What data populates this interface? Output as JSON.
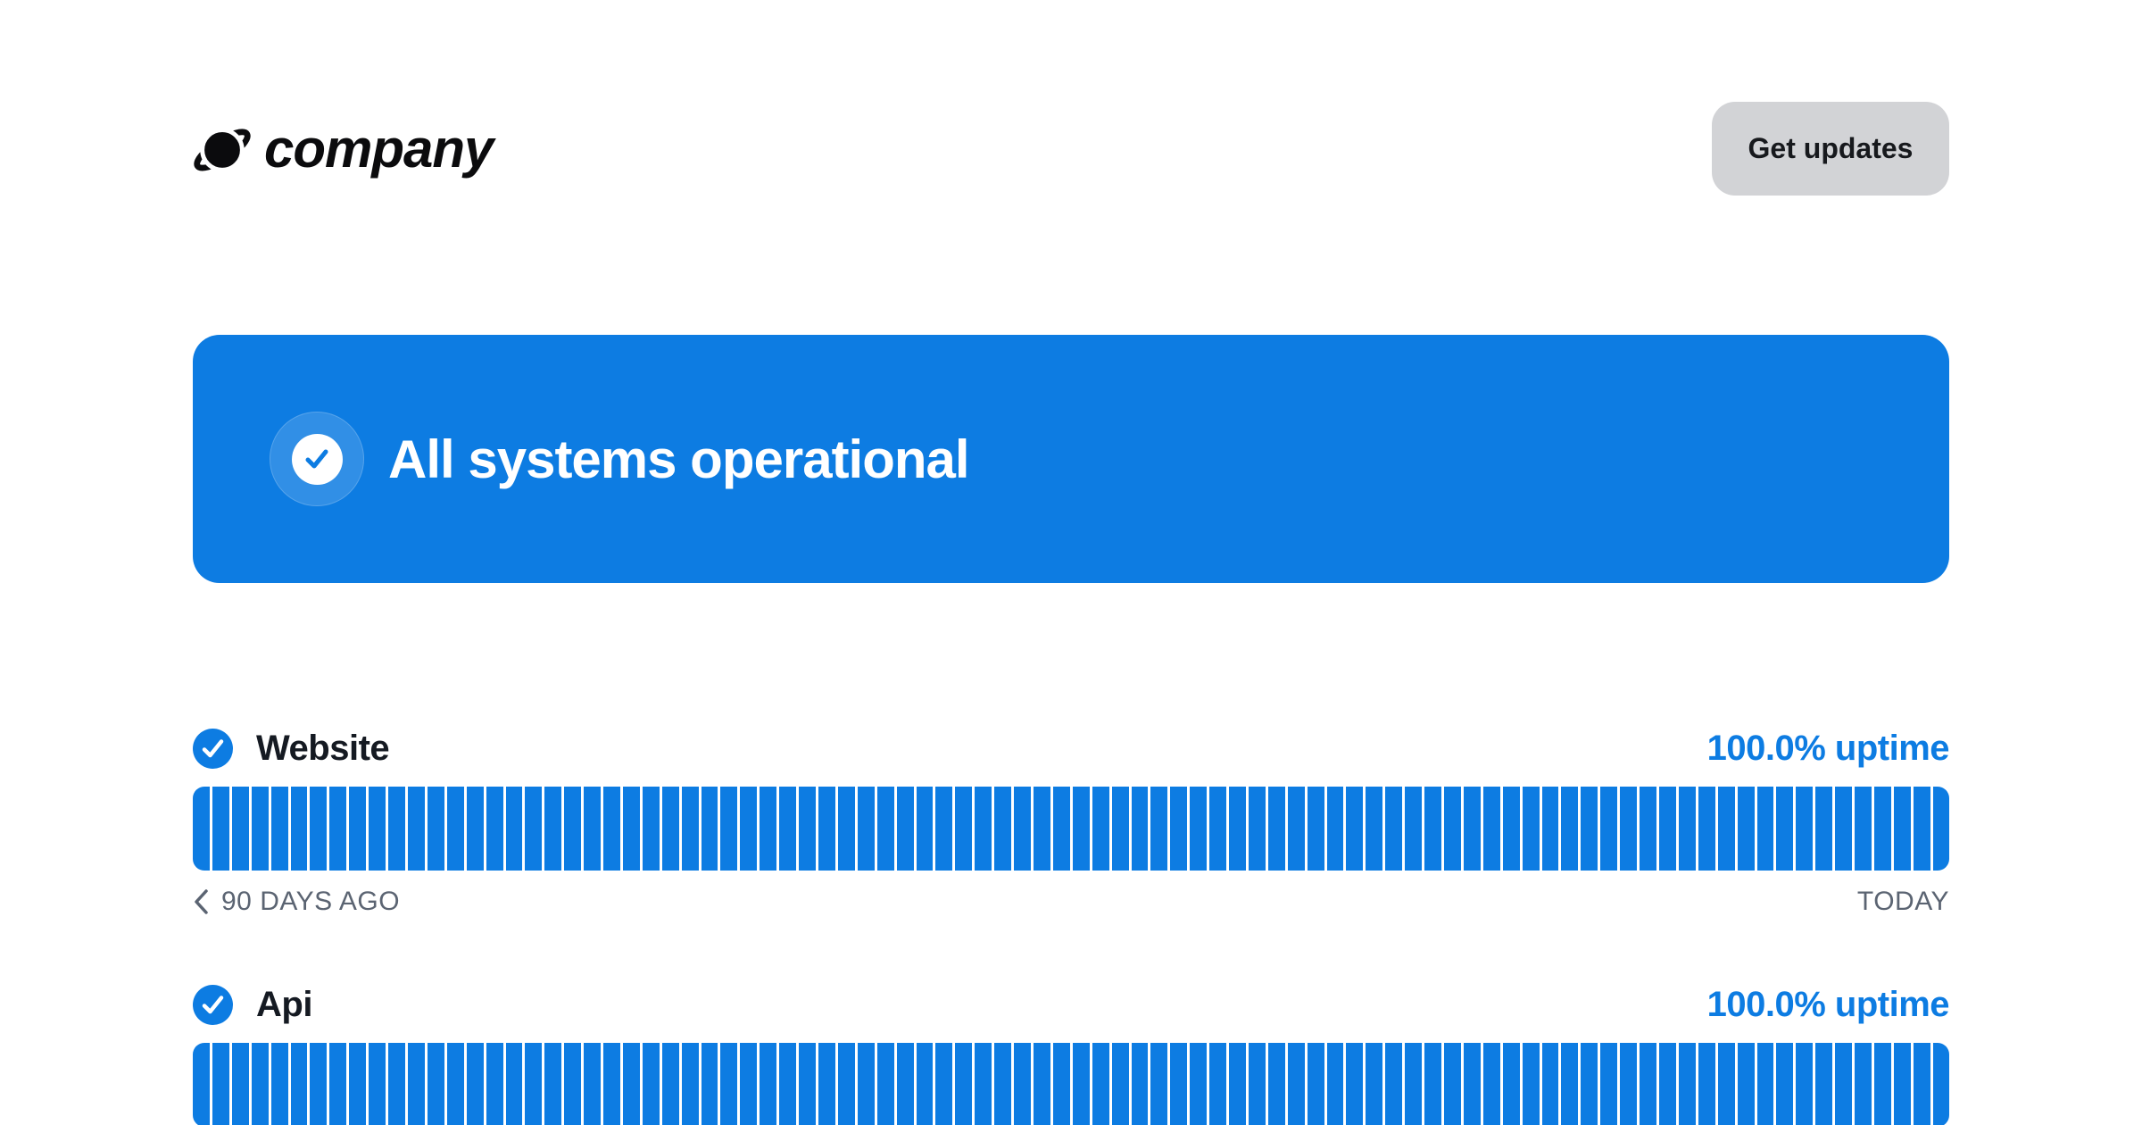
{
  "header": {
    "logo_text": "company",
    "get_updates_label": "Get updates"
  },
  "banner": {
    "message": "All systems operational"
  },
  "services": [
    {
      "name": "Website",
      "uptime_label": "100.0% uptime",
      "uptime_percent": 100.0,
      "days": 90,
      "status": "operational",
      "legend": {
        "left": "90 DAYS AGO",
        "right": "TODAY"
      }
    },
    {
      "name": "Api",
      "uptime_label": "100.0% uptime",
      "uptime_percent": 100.0,
      "days": 90,
      "status": "operational"
    }
  ],
  "icons": {
    "logo": "planet-icon",
    "banner_badge": "check-circle-icon",
    "service_status": "check-circle-icon",
    "legend_nav": "chevron-left-icon"
  },
  "colors": {
    "brand_blue": "#0d7ce2",
    "banner_text": "#ffffff",
    "label_dark": "#151a22",
    "legend_gray": "#5b6472",
    "button_gray": "#d2d3d6",
    "background": "#ffffff"
  }
}
